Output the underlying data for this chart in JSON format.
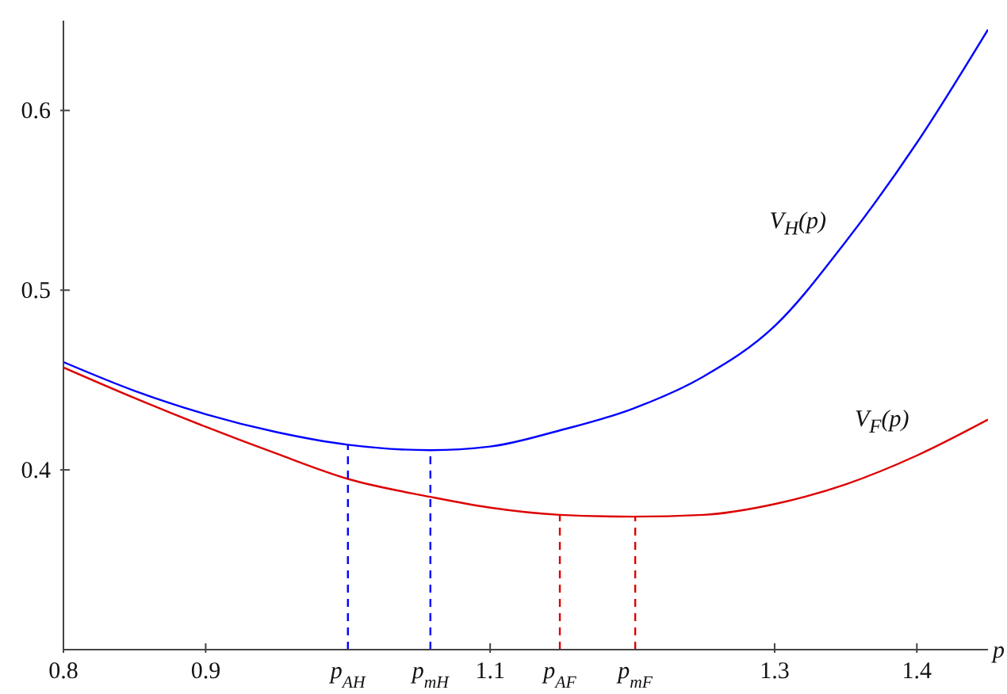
{
  "chart_data": {
    "type": "line",
    "xlabel": "p",
    "xlim": [
      0.8,
      1.45
    ],
    "ylim": [
      0.3,
      0.65
    ],
    "xticks": [
      0.8,
      0.9,
      {
        "value": 1.0,
        "label": "p$_{AH}$"
      },
      {
        "value": 1.058,
        "label": "p$_{mH}$"
      },
      1.1,
      {
        "value": 1.149,
        "label": "p$_{AF}$"
      },
      {
        "value": 1.202,
        "label": "p$_{mF}$"
      },
      1.3,
      1.4
    ],
    "yticks": [
      0.4,
      0.5,
      0.6
    ],
    "grid": false,
    "legend": false,
    "marker": "none",
    "series": [
      {
        "name": "V$_{H}$(p)",
        "color": "#0000ff",
        "line_style": "solid",
        "x": [
          0.8,
          0.85,
          0.9,
          0.95,
          1.0,
          1.058,
          1.1,
          1.149,
          1.2,
          1.25,
          1.3,
          1.35,
          1.4,
          1.45
        ],
        "values": [
          0.46,
          0.444,
          0.431,
          0.421,
          0.414,
          0.411,
          0.413,
          0.422,
          0.434,
          0.452,
          0.48,
          0.527,
          0.582,
          0.645
        ]
      },
      {
        "name": "V$_{F}$(p)",
        "color": "#dd0000",
        "line_style": "solid",
        "x": [
          0.8,
          0.85,
          0.9,
          0.95,
          1.0,
          1.058,
          1.1,
          1.149,
          1.2,
          1.25,
          1.3,
          1.35,
          1.4,
          1.45
        ],
        "values": [
          0.457,
          0.44,
          0.424,
          0.409,
          0.395,
          0.385,
          0.379,
          0.375,
          0.374,
          0.375,
          0.381,
          0.392,
          0.408,
          0.428
        ]
      },
      {
        "color": "#0000ff",
        "line_style": "dashed",
        "x": [
          1.0,
          1.0
        ],
        "values": [
          0.3,
          0.414
        ]
      },
      {
        "color": "#0000ff",
        "line_style": "dashed",
        "x": [
          1.058,
          1.058
        ],
        "values": [
          0.3,
          0.411
        ]
      },
      {
        "color": "#dd0000",
        "line_style": "dashed",
        "x": [
          1.149,
          1.149
        ],
        "values": [
          0.3,
          0.375
        ]
      },
      {
        "color": "#dd0000",
        "line_style": "dashed",
        "x": [
          1.202,
          1.202
        ],
        "values": [
          0.3,
          0.374
        ]
      }
    ]
  }
}
